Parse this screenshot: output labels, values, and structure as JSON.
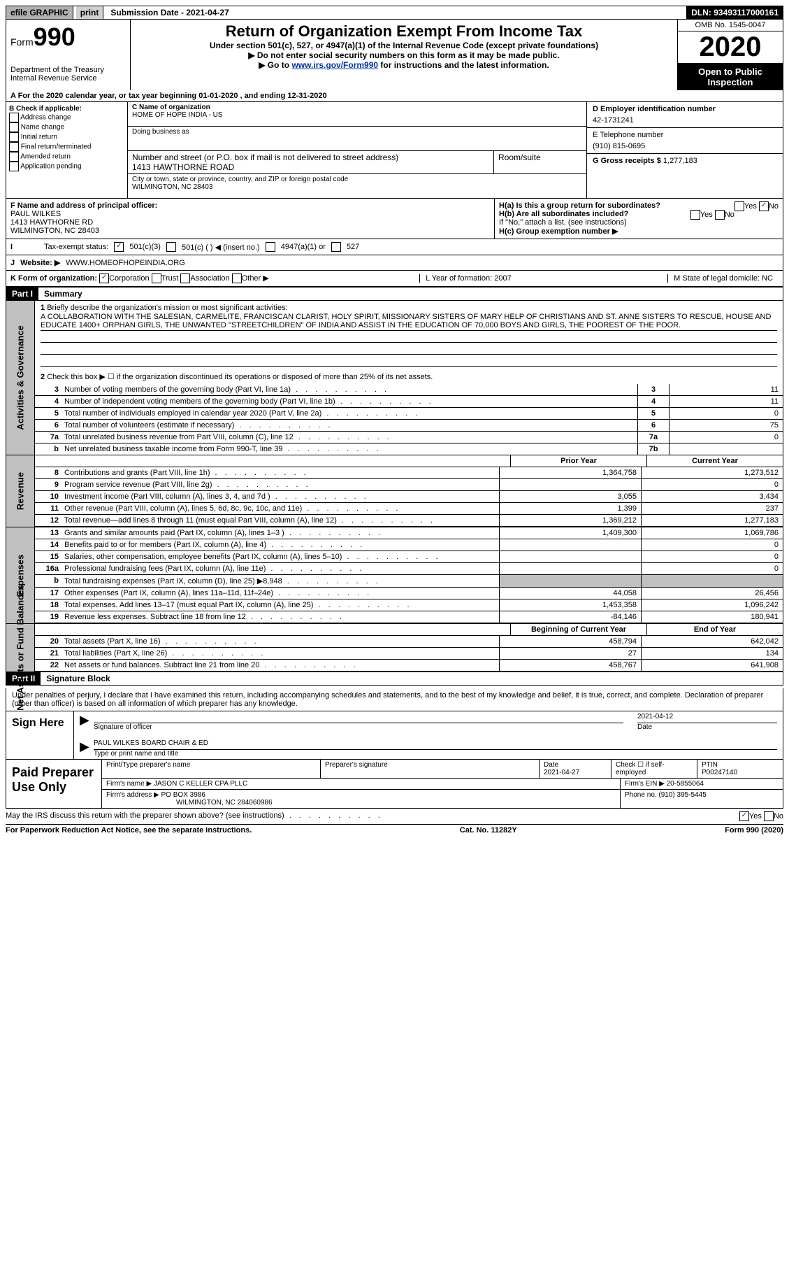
{
  "top": {
    "efile": "efile GRAPHIC",
    "print": "print",
    "submission": "Submission Date - 2021-04-27",
    "dln": "DLN: 93493117000161"
  },
  "header": {
    "form": "Form",
    "num": "990",
    "dept": "Department of the Treasury\nInternal Revenue Service",
    "title": "Return of Organization Exempt From Income Tax",
    "sub1": "Under section 501(c), 527, or 4947(a)(1) of the Internal Revenue Code (except private foundations)",
    "sub2": "▶ Do not enter social security numbers on this form as it may be made public.",
    "sub3": "▶ Go to ",
    "link": "www.irs.gov/Form990",
    "sub3b": " for instructions and the latest information.",
    "omb": "OMB No. 1545-0047",
    "year": "2020",
    "open": "Open to Public Inspection"
  },
  "period": "For the 2020 calendar year, or tax year beginning 01-01-2020   , and ending 12-31-2020",
  "boxB": {
    "label": "B Check if applicable:",
    "opts": [
      "Address change",
      "Name change",
      "Initial return",
      "Final return/terminated",
      "Amended return",
      "Application pending"
    ]
  },
  "boxC": {
    "name_label": "C Name of organization",
    "name": "HOME OF HOPE INDIA - US",
    "dba_label": "Doing business as",
    "addr_label": "Number and street (or P.O. box if mail is not delivered to street address)",
    "room_label": "Room/suite",
    "addr": "1413 HAWTHORNE ROAD",
    "city_label": "City or town, state or province, country, and ZIP or foreign postal code",
    "city": "WILMINGTON, NC  28403"
  },
  "boxD": {
    "ein_label": "D Employer identification number",
    "ein": "42-1731241",
    "tel_label": "E Telephone number",
    "tel": "(910) 815-0695",
    "gross_label": "G Gross receipts $",
    "gross": "1,277,183"
  },
  "boxF": {
    "label": "F Name and address of principal officer:",
    "name": "PAUL WILKES",
    "addr": "1413 HAWTHORNE RD",
    "city": "WILMINGTON, NC  28403"
  },
  "boxH": {
    "ha": "H(a)  Is this a group return for subordinates?",
    "hb": "H(b)  Are all subordinates included?",
    "hb_note": "If \"No,\" attach a list. (see instructions)",
    "hc": "H(c)  Group exemption number ▶"
  },
  "status": {
    "label": "Tax-exempt status:",
    "opts": [
      "501(c)(3)",
      "501(c) (  ) ◀ (insert no.)",
      "4947(a)(1) or",
      "527"
    ]
  },
  "j": {
    "label": "Website: ▶",
    "val": "WWW.HOMEOFHOPEINDIA.ORG"
  },
  "k": {
    "label": "K Form of organization:",
    "opts": [
      "Corporation",
      "Trust",
      "Association",
      "Other ▶"
    ],
    "l": "L Year of formation: 2007",
    "m": "M State of legal domicile: NC"
  },
  "part1": {
    "header": "Part I",
    "title": "Summary",
    "l1": "Briefly describe the organization's mission or most significant activities:",
    "mission": "A COLLABORATION WITH THE SALESIAN, CARMELITE, FRANCISCAN CLARIST, HOLY SPIRIT, MISSIONARY SISTERS OF MARY HELP OF CHRISTIANS AND ST. ANNE SISTERS TO RESCUE, HOUSE AND EDUCATE 1400+ ORPHAN GIRLS, THE UNWANTED \"STREETCHILDREN\" OF INDIA AND ASSIST IN THE EDUCATION OF 70,000 BOYS AND GIRLS, THE POOREST OF THE POOR.",
    "l2": "Check this box ▶ ☐  if the organization discontinued its operations or disposed of more than 25% of its net assets.",
    "side_gov": "Activities & Governance",
    "side_rev": "Revenue",
    "side_exp": "Expenses",
    "side_net": "Net Assets or Fund Balances",
    "lines_gov": [
      {
        "n": "3",
        "t": "Number of voting members of the governing body (Part VI, line 1a)",
        "box": "3",
        "v": "11"
      },
      {
        "n": "4",
        "t": "Number of independent voting members of the governing body (Part VI, line 1b)",
        "box": "4",
        "v": "11"
      },
      {
        "n": "5",
        "t": "Total number of individuals employed in calendar year 2020 (Part V, line 2a)",
        "box": "5",
        "v": "0"
      },
      {
        "n": "6",
        "t": "Total number of volunteers (estimate if necessary)",
        "box": "6",
        "v": "75"
      },
      {
        "n": "7a",
        "t": "Total unrelated business revenue from Part VIII, column (C), line 12",
        "box": "7a",
        "v": "0"
      },
      {
        "n": "b",
        "t": "Net unrelated business taxable income from Form 990-T, line 39",
        "box": "7b",
        "v": ""
      }
    ],
    "col_prior": "Prior Year",
    "col_current": "Current Year",
    "lines_rev": [
      {
        "n": "8",
        "t": "Contributions and grants (Part VIII, line 1h)",
        "p": "1,364,758",
        "c": "1,273,512"
      },
      {
        "n": "9",
        "t": "Program service revenue (Part VIII, line 2g)",
        "p": "",
        "c": "0"
      },
      {
        "n": "10",
        "t": "Investment income (Part VIII, column (A), lines 3, 4, and 7d )",
        "p": "3,055",
        "c": "3,434"
      },
      {
        "n": "11",
        "t": "Other revenue (Part VIII, column (A), lines 5, 6d, 8c, 9c, 10c, and 11e)",
        "p": "1,399",
        "c": "237"
      },
      {
        "n": "12",
        "t": "Total revenue—add lines 8 through 11 (must equal Part VIII, column (A), line 12)",
        "p": "1,369,212",
        "c": "1,277,183"
      }
    ],
    "lines_exp": [
      {
        "n": "13",
        "t": "Grants and similar amounts paid (Part IX, column (A), lines 1–3 )",
        "p": "1,409,300",
        "c": "1,069,786"
      },
      {
        "n": "14",
        "t": "Benefits paid to or for members (Part IX, column (A), line 4)",
        "p": "",
        "c": "0"
      },
      {
        "n": "15",
        "t": "Salaries, other compensation, employee benefits (Part IX, column (A), lines 5–10)",
        "p": "",
        "c": "0"
      },
      {
        "n": "16a",
        "t": "Professional fundraising fees (Part IX, column (A), line 11e)",
        "p": "",
        "c": "0"
      },
      {
        "n": "b",
        "t": "Total fundraising expenses (Part IX, column (D), line 25) ▶8,948",
        "p": "gray",
        "c": "gray"
      },
      {
        "n": "17",
        "t": "Other expenses (Part IX, column (A), lines 11a–11d, 11f–24e)",
        "p": "44,058",
        "c": "26,456"
      },
      {
        "n": "18",
        "t": "Total expenses. Add lines 13–17 (must equal Part IX, column (A), line 25)",
        "p": "1,453,358",
        "c": "1,096,242"
      },
      {
        "n": "19",
        "t": "Revenue less expenses. Subtract line 18 from line 12",
        "p": "-84,146",
        "c": "180,941"
      }
    ],
    "col_begin": "Beginning of Current Year",
    "col_end": "End of Year",
    "lines_net": [
      {
        "n": "20",
        "t": "Total assets (Part X, line 16)",
        "p": "458,794",
        "c": "642,042"
      },
      {
        "n": "21",
        "t": "Total liabilities (Part X, line 26)",
        "p": "27",
        "c": "134"
      },
      {
        "n": "22",
        "t": "Net assets or fund balances. Subtract line 21 from line 20",
        "p": "458,767",
        "c": "641,908"
      }
    ]
  },
  "part2": {
    "header": "Part II",
    "title": "Signature Block",
    "decl": "Under penalties of perjury, I declare that I have examined this return, including accompanying schedules and statements, and to the best of my knowledge and belief, it is true, correct, and complete. Declaration of preparer (other than officer) is based on all information of which preparer has any knowledge.",
    "sign_here": "Sign Here",
    "sig_officer": "Signature of officer",
    "sig_date_label": "Date",
    "sig_date": "2021-04-12",
    "sig_name": "PAUL WILKES BOARD CHAIR & ED",
    "sig_name_label": "Type or print name and title",
    "paid": "Paid Preparer Use Only",
    "p_name_label": "Print/Type preparer's name",
    "p_sig_label": "Preparer's signature",
    "p_date_label": "Date",
    "p_date": "2021-04-27",
    "p_check": "Check ☐ if self-employed",
    "p_ptin_label": "PTIN",
    "p_ptin": "P00247140",
    "p_firm_label": "Firm's name    ▶",
    "p_firm": "JASON C KELLER CPA PLLC",
    "p_ein_label": "Firm's EIN ▶",
    "p_ein": "20-5855064",
    "p_addr_label": "Firm's address ▶",
    "p_addr": "PO BOX 3986",
    "p_addr2": "WILMINGTON, NC  284060986",
    "p_phone_label": "Phone no.",
    "p_phone": "(910) 395-5445",
    "discuss": "May the IRS discuss this return with the preparer shown above? (see instructions)"
  },
  "footer": {
    "paperwork": "For Paperwork Reduction Act Notice, see the separate instructions.",
    "cat": "Cat. No. 11282Y",
    "form": "Form 990 (2020)"
  }
}
